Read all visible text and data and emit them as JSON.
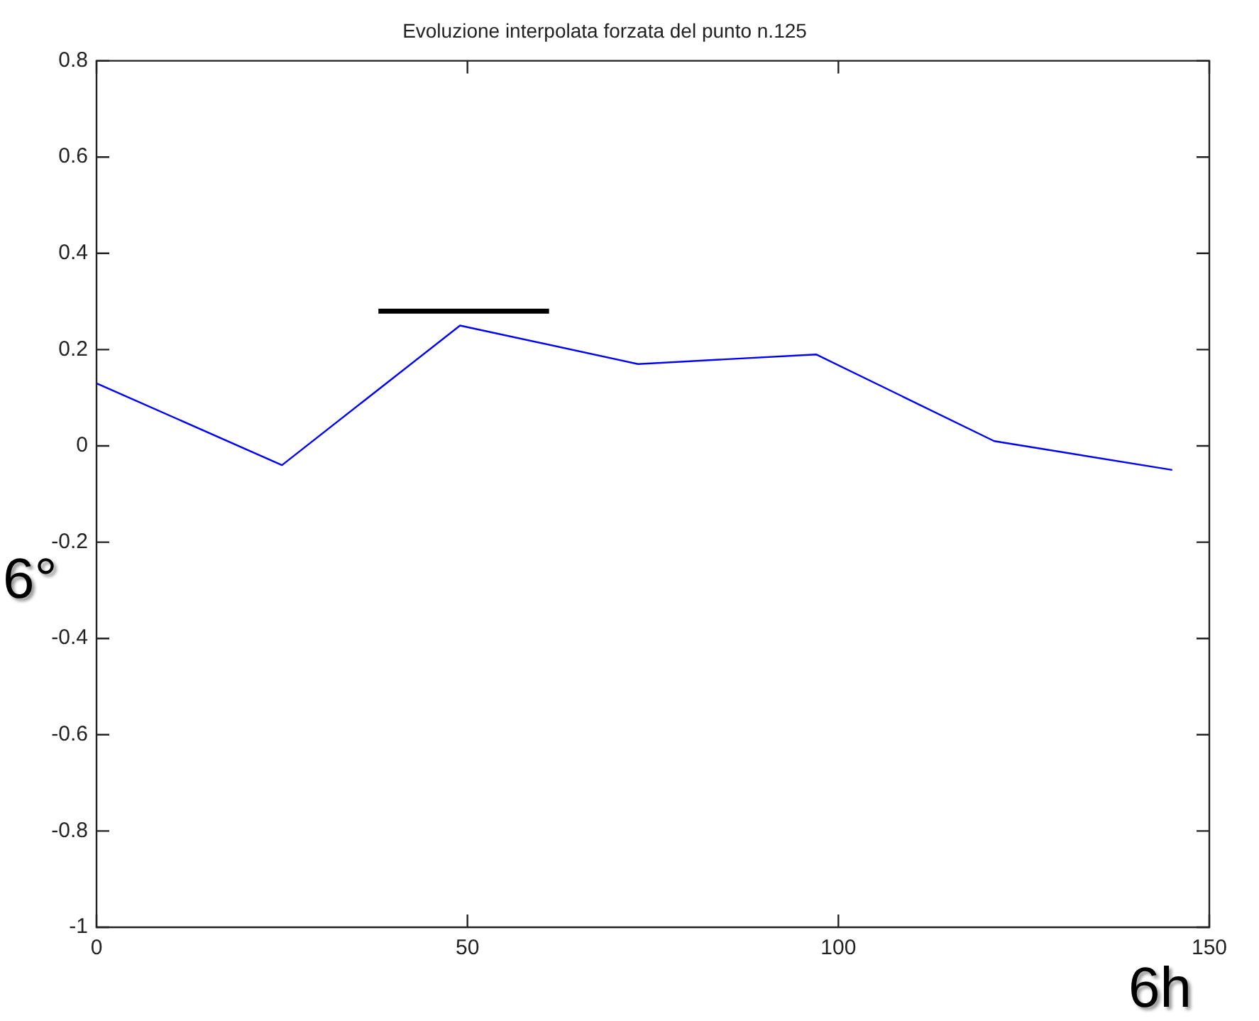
{
  "chart_data": {
    "type": "line",
    "title": "Evoluzione interpolata forzata del punto n.125",
    "x": [
      0,
      25,
      49,
      73,
      97,
      121,
      145
    ],
    "series": [
      {
        "color": "#0000ff",
        "values": [
          0.13,
          -0.04,
          0.25,
          0.17,
          0.19,
          0.01,
          -0.05
        ]
      },
      {
        "color": "#000000",
        "x": [
          38,
          61
        ],
        "values": [
          0.28,
          0.28
        ]
      }
    ],
    "xlim": [
      0,
      150
    ],
    "xticks": [
      0,
      50,
      100,
      150
    ],
    "ylim": [
      -1,
      0.8
    ],
    "yticks": [
      -1,
      -0.8,
      -0.6,
      -0.4,
      -0.2,
      0,
      0.2,
      0.4,
      0.6,
      0.8
    ],
    "grid": false,
    "legend": false,
    "marker": "none",
    "line_style": "solid",
    "annotations": [
      "6°",
      "6h"
    ]
  }
}
